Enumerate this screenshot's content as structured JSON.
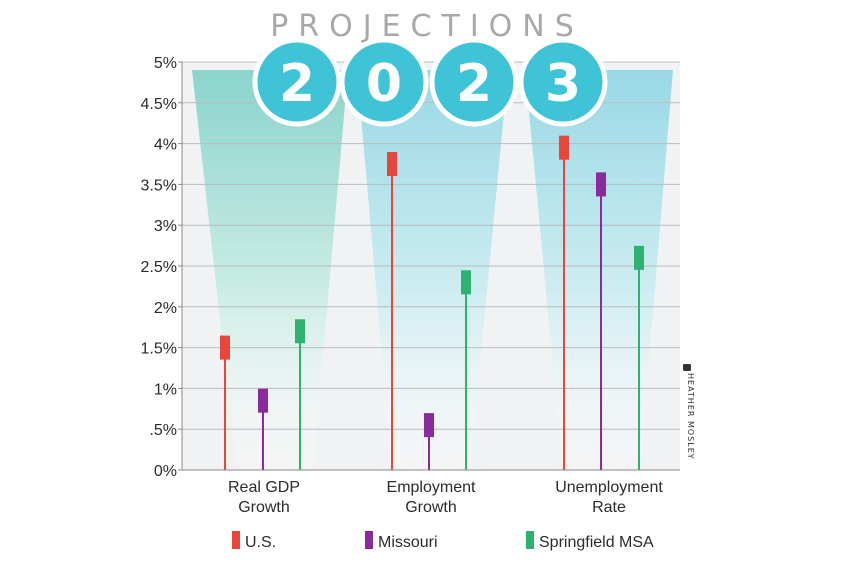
{
  "header": {
    "title": "PROJECTIONS",
    "year_digits": [
      "2",
      "0",
      "2",
      "3"
    ]
  },
  "credit": "HEATHER MOSLEY",
  "colors": {
    "us": "#e8453c",
    "missouri": "#8a2a9c",
    "springfield": "#2db36f",
    "circle": "#3ec4d6",
    "title": "#a8a8a8"
  },
  "chart_data": {
    "type": "bar",
    "categories": [
      "Real GDP Growth",
      "Employment Growth",
      "Unemployment Rate"
    ],
    "category_lines": [
      [
        "Real GDP",
        "Growth"
      ],
      [
        "Employment",
        "Growth"
      ],
      [
        "Unemployment",
        "Rate"
      ]
    ],
    "series": [
      {
        "name": "U.S.",
        "values": [
          1.5,
          3.75,
          3.95
        ]
      },
      {
        "name": "Missouri",
        "values": [
          0.85,
          0.55,
          3.5
        ]
      },
      {
        "name": "Springfield MSA",
        "values": [
          1.7,
          2.3,
          2.6
        ]
      }
    ],
    "ylim": [
      0,
      5
    ],
    "ytick_values": [
      0,
      0.5,
      1,
      1.5,
      2,
      2.5,
      3,
      3.5,
      4,
      4.5,
      5
    ],
    "ytick_labels": [
      "0%",
      ".5%",
      "1%",
      "1.5%",
      "2%",
      "2.5%",
      "3%",
      "3.5%",
      "4%",
      "4.5%",
      "5%"
    ],
    "grid": true,
    "legend_position": "bottom"
  }
}
